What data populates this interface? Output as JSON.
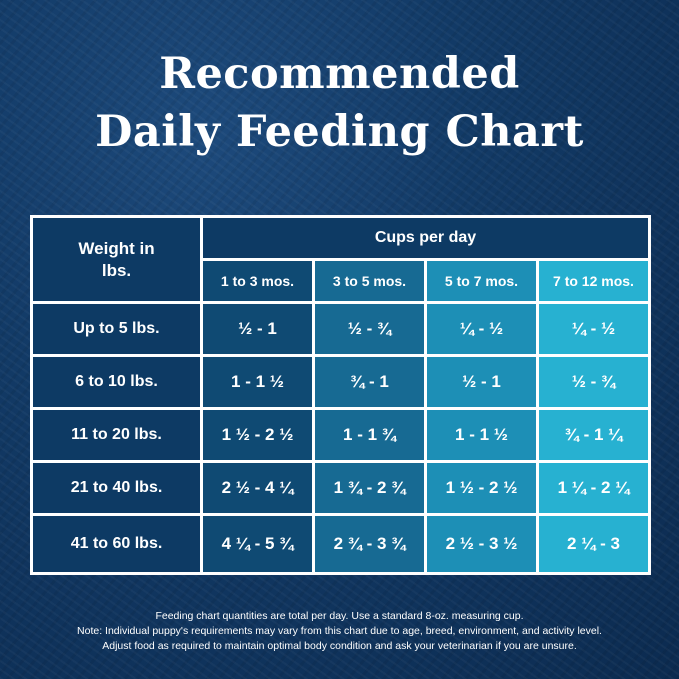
{
  "title": {
    "line1": "Recommended",
    "line2": "Daily Feeding Chart"
  },
  "table": {
    "row_header": "Weight in lbs.",
    "group_header": "Cups per day",
    "columns": [
      "1 to 3 mos.",
      "3 to 5 mos.",
      "5 to 7 mos.",
      "7 to 12 mos."
    ],
    "rows": [
      {
        "weight": "Up to 5 lbs.",
        "values": [
          "½  - 1",
          "½  - ¾",
          "¼  - ½",
          "¼  - ½"
        ]
      },
      {
        "weight": "6 to 10 lbs.",
        "values": [
          "1 - 1 ½",
          "¾ - 1",
          "½ - 1",
          "½ - ¾"
        ]
      },
      {
        "weight": "11 to 20 lbs.",
        "values": [
          "1 ½  - 2 ½",
          "1 - 1 ¾",
          "1 - 1 ½",
          "¾ - 1 ¼"
        ]
      },
      {
        "weight": "21 to 40 lbs.",
        "values": [
          "2 ½ - 4 ¼",
          "1 ¾ - 2 ¾",
          "1 ½ - 2 ½",
          "1 ¼ - 2 ¼"
        ]
      },
      {
        "weight": "41 to 60 lbs.",
        "values": [
          "4 ¼  - 5 ¾",
          "2 ¾  - 3 ¾",
          "2 ½  - 3 ½",
          "2 ¼  - 3"
        ]
      }
    ]
  },
  "notes": [
    "Feeding chart quantities are total per day. Use a standard 8-oz. measuring cup.",
    "Note: Individual puppy's requirements may vary from this chart due to age, breed, environment, and activity level.",
    "Adjust food as required to maintain optimal body condition and ask your veterinarian if you are unsure."
  ],
  "colors": {
    "col0": "#0d3a64",
    "col1": "#0f4a73",
    "col2": "#176a93",
    "col3": "#1d8fb6",
    "col4": "#27b1d1"
  }
}
